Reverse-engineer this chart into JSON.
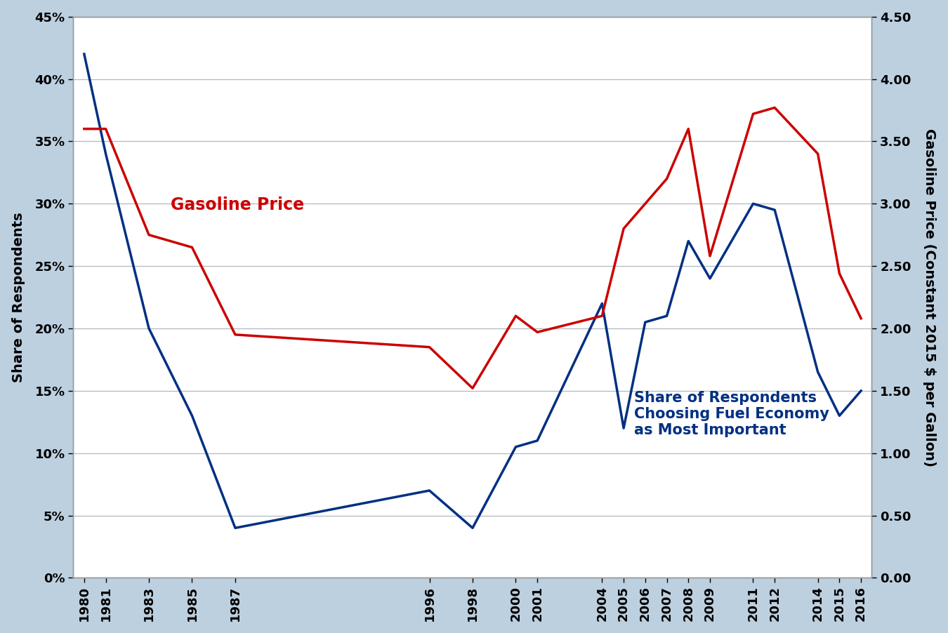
{
  "x_years": [
    1980,
    1981,
    1983,
    1985,
    1987,
    1996,
    1998,
    2000,
    2001,
    2004,
    2005,
    2006,
    2007,
    2008,
    2009,
    2011,
    2012,
    2014,
    2015,
    2016
  ],
  "x_labels": [
    "1980",
    "1981",
    "1983",
    "1985",
    "1987",
    "1996",
    "1998",
    "2000",
    "2001",
    "2004",
    "2005",
    "2006",
    "2007",
    "2008",
    "2009",
    "2011",
    "2012",
    "2014",
    "2015",
    "2016"
  ],
  "fuel_economy_pct": [
    0.42,
    0.34,
    0.2,
    0.13,
    0.04,
    0.07,
    0.04,
    0.105,
    0.11,
    0.22,
    0.12,
    0.205,
    0.21,
    0.27,
    0.24,
    0.3,
    0.295,
    0.165,
    0.13,
    0.15
  ],
  "gasoline_price": [
    3.6,
    3.6,
    2.75,
    2.65,
    1.95,
    1.85,
    1.52,
    2.1,
    1.97,
    2.1,
    2.8,
    3.0,
    3.2,
    3.6,
    2.58,
    3.72,
    3.77,
    3.4,
    2.44,
    2.08
  ],
  "fuel_economy_color": "#003082",
  "gasoline_price_color": "#cc0000",
  "background_color": "#bdd0e0",
  "plot_background_color": "#ffffff",
  "left_ylabel": "Share of Respondents",
  "right_ylabel": "Gasoline Price (Constant 2015 $ per Gallon)",
  "left_ylim": [
    0,
    0.45
  ],
  "right_ylim": [
    0,
    4.5
  ],
  "left_yticks": [
    0,
    0.05,
    0.1,
    0.15,
    0.2,
    0.25,
    0.3,
    0.35,
    0.4,
    0.45
  ],
  "right_yticks": [
    0.0,
    0.5,
    1.0,
    1.5,
    2.0,
    2.5,
    3.0,
    3.5,
    4.0,
    4.5
  ],
  "fuel_economy_label": "Share of Respondents\nChoosing Fuel Economy\nas Most Important",
  "gasoline_price_label": "Gasoline Price",
  "line_width": 2.5,
  "font_size_ticks": 13,
  "font_size_labels": 14,
  "font_size_annotations": 15,
  "xlim": [
    1979.5,
    2016.5
  ]
}
